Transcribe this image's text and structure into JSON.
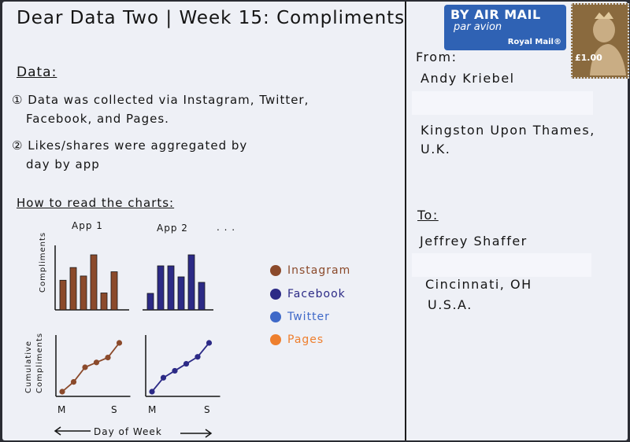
{
  "title": "Dear Data Two | Week 15: Compliments",
  "data_section": {
    "heading": "Data:",
    "point1_line1": "① Data was collected via Instagram, Twitter,",
    "point1_line2": "Facebook, and Pages.",
    "point2_line1": "② Likes/shares were aggregated by",
    "point2_line2": "day by app"
  },
  "how_to_read": {
    "heading": "How to read the charts:",
    "app1_label": "App 1",
    "app2_label": "App 2",
    "ellipsis": ". . .",
    "bar_ylabel": "Compliments",
    "line_ylabel_1": "Cumulative",
    "line_ylabel_2": "Compliments",
    "x_start": "M",
    "x_end": "S",
    "axis_caption": "Day of Week"
  },
  "legend": [
    {
      "label": "Instagram",
      "color": "#8b4a2b"
    },
    {
      "label": "Facebook",
      "color": "#2c2a86"
    },
    {
      "label": "Twitter",
      "color": "#3f69c8"
    },
    {
      "label": "Pages",
      "color": "#ee7f2e"
    }
  ],
  "example_charts": {
    "app1_bars": [
      7,
      10,
      8,
      13,
      4,
      9
    ],
    "app2_bars": [
      3,
      8,
      8,
      6,
      10,
      5
    ],
    "app1_cumulative": [
      1,
      3,
      6,
      7,
      8,
      11
    ],
    "app2_cumulative": [
      1,
      3,
      4,
      5,
      6,
      8
    ]
  },
  "postmark": {
    "airmail_line1": "BY AIR MAIL",
    "airmail_line2": "par avion",
    "royal_mail": "Royal Mail®",
    "stamp_value": "£1.00"
  },
  "from": {
    "label": "From:",
    "name": "Andy Kriebel",
    "city": "Kingston Upon Thames,",
    "country": "U.K."
  },
  "to": {
    "label": "To:",
    "name": "Jeffrey Shaffer",
    "city": "Cincinnati, OH",
    "country": "U.S.A."
  },
  "colors": {
    "card": "#eef0f6",
    "ink": "#141414",
    "airmail_blue": "#2f62b4",
    "stamp_brown": "#8a6a3e"
  }
}
